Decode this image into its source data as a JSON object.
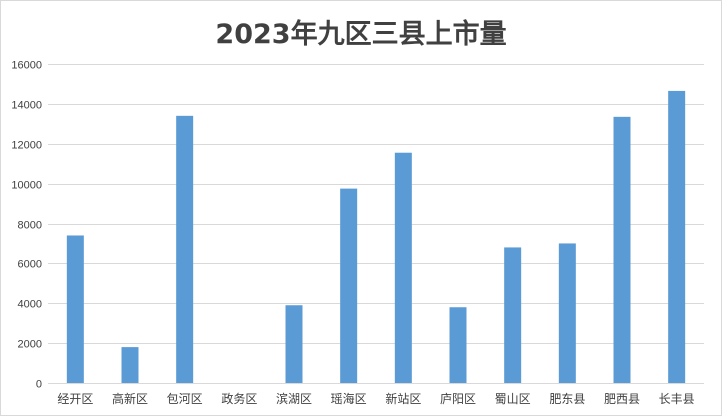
{
  "chart_data": {
    "type": "bar",
    "title": "2023年九区三县上市量",
    "categories": [
      "经开区",
      "高新区",
      "包河区",
      "政务区",
      "滨湖区",
      "瑶海区",
      "新站区",
      "庐阳区",
      "蜀山区",
      "肥东县",
      "肥西县",
      "长丰县"
    ],
    "values": [
      7400,
      1800,
      13400,
      0,
      3900,
      9750,
      11550,
      3800,
      6800,
      7000,
      13350,
      14650
    ],
    "ylim": [
      0,
      16000
    ],
    "yticks": [
      0,
      2000,
      4000,
      6000,
      8000,
      10000,
      12000,
      14000,
      16000
    ],
    "xlabel": "",
    "ylabel": "",
    "grid": true,
    "legend": "none",
    "bar_color": "#5b9bd5",
    "grid_color": "#d9d9d9"
  }
}
